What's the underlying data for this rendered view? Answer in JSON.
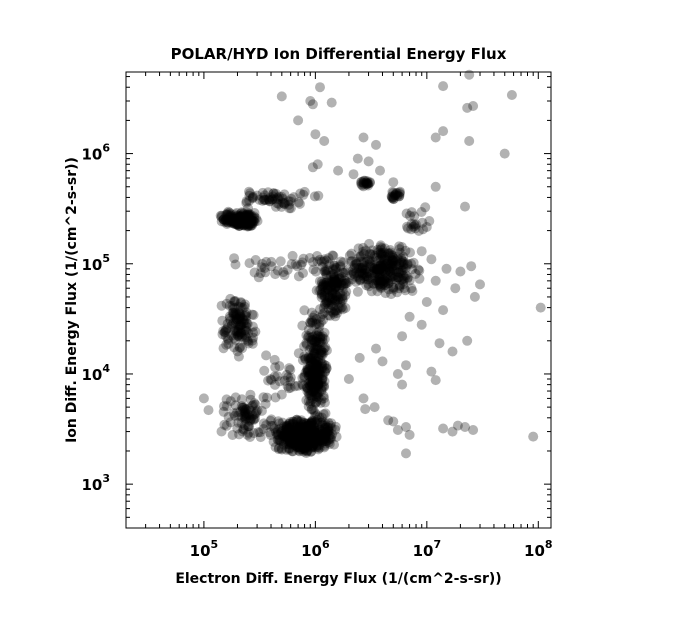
{
  "chart_data": {
    "type": "scatter",
    "title": "POLAR/HYD  Ion Differential Energy Flux",
    "xlabel": "Electron Diff. Energy Flux (1/(cm^2-s-sr))",
    "ylabel": "Ion Diff. Energy Flux (1/(cm^2-s-sr))",
    "x_scale": "log",
    "y_scale": "log",
    "xlim": [
      20000,
      130000000
    ],
    "ylim": [
      400,
      5500000
    ],
    "x_ticks": [
      {
        "base": "10",
        "exp": "5",
        "value": 100000
      },
      {
        "base": "10",
        "exp": "6",
        "value": 1000000
      },
      {
        "base": "10",
        "exp": "7",
        "value": 10000000
      },
      {
        "base": "10",
        "exp": "8",
        "value": 100000000
      }
    ],
    "y_ticks": [
      {
        "base": "10",
        "exp": "3",
        "value": 1000
      },
      {
        "base": "10",
        "exp": "4",
        "value": 10000
      },
      {
        "base": "10",
        "exp": "5",
        "value": 100000
      },
      {
        "base": "10",
        "exp": "6",
        "value": 1000000
      }
    ],
    "marker_color": "#000000",
    "marker_opacity": 0.3,
    "grid": false,
    "legend": "none",
    "clusters": [
      {
        "x_range": [
          400000,
          1600000
        ],
        "y_range": [
          1900,
          4000
        ],
        "n": 460
      },
      {
        "x_range": [
          750000,
          1300000
        ],
        "y_range": [
          3000,
          40000
        ],
        "n": 260
      },
      {
        "x_range": [
          1000000,
          2000000
        ],
        "y_range": [
          30000,
          120000
        ],
        "n": 160
      },
      {
        "x_range": [
          1800000,
          9000000
        ],
        "y_range": [
          50000,
          160000
        ],
        "n": 280
      },
      {
        "x_range": [
          140000,
          320000
        ],
        "y_range": [
          210000,
          300000
        ],
        "n": 170
      },
      {
        "x_range": [
          140000,
          300000
        ],
        "y_range": [
          14000,
          55000
        ],
        "n": 120
      },
      {
        "x_range": [
          130000,
          450000
        ],
        "y_range": [
          2500,
          7000
        ],
        "n": 90
      },
      {
        "x_range": [
          150000,
          1200000
        ],
        "y_range": [
          300000,
          500000
        ],
        "n": 60
      },
      {
        "x_range": [
          2400000,
          3200000
        ],
        "y_range": [
          500000,
          580000
        ],
        "n": 20
      },
      {
        "x_range": [
          4500000,
          6500000
        ],
        "y_range": [
          380000,
          470000
        ],
        "n": 20
      },
      {
        "x_range": [
          6000000,
          12000000
        ],
        "y_range": [
          180000,
          350000
        ],
        "n": 20
      },
      {
        "x_range": [
          150000,
          3000000
        ],
        "y_range": [
          70000,
          130000
        ],
        "n": 40
      },
      {
        "x_range": [
          300000,
          1200000
        ],
        "y_range": [
          6000,
          20000
        ],
        "n": 30
      }
    ],
    "points": [
      [
        500000,
        3300000
      ],
      [
        900000,
        3000000
      ],
      [
        950000,
        2800000
      ],
      [
        1100000,
        4000000
      ],
      [
        1400000,
        2900000
      ],
      [
        700000,
        2000000
      ],
      [
        1000000,
        1500000
      ],
      [
        1200000,
        1300000
      ],
      [
        2700000,
        1400000
      ],
      [
        3500000,
        1200000
      ],
      [
        14000000,
        4100000
      ],
      [
        24000000,
        5200000
      ],
      [
        58000000,
        3400000
      ],
      [
        23000000,
        2600000
      ],
      [
        26000000,
        2700000
      ],
      [
        12000000,
        1400000
      ],
      [
        14000000,
        1600000
      ],
      [
        24000000,
        1300000
      ],
      [
        50000000,
        1000000
      ],
      [
        2400000,
        900000
      ],
      [
        3000000,
        850000
      ],
      [
        950000,
        750000
      ],
      [
        1050000,
        800000
      ],
      [
        1600000,
        700000
      ],
      [
        2200000,
        650000
      ],
      [
        3800000,
        700000
      ],
      [
        5000000,
        550000
      ],
      [
        12000000,
        500000
      ],
      [
        22000000,
        330000
      ],
      [
        9000000,
        130000
      ],
      [
        11000000,
        110000
      ],
      [
        15000000,
        90000
      ],
      [
        20000000,
        85000
      ],
      [
        25000000,
        95000
      ],
      [
        12000000,
        70000
      ],
      [
        18000000,
        60000
      ],
      [
        30000000,
        65000
      ],
      [
        27000000,
        50000
      ],
      [
        105000000,
        40000
      ],
      [
        10000000,
        45000
      ],
      [
        7000000,
        33000
      ],
      [
        6000000,
        22000
      ],
      [
        9000000,
        28000
      ],
      [
        14000000,
        38000
      ],
      [
        13000000,
        19000
      ],
      [
        23000000,
        20000
      ],
      [
        17000000,
        16000
      ],
      [
        11000000,
        10500
      ],
      [
        12000000,
        8800
      ],
      [
        6500000,
        12000
      ],
      [
        5500000,
        10000
      ],
      [
        3500000,
        17000
      ],
      [
        4000000,
        13000
      ],
      [
        2500000,
        14000
      ],
      [
        2000000,
        9000
      ],
      [
        2700000,
        6000
      ],
      [
        3400000,
        5000
      ],
      [
        2800000,
        4800
      ],
      [
        5000000,
        3700
      ],
      [
        6500000,
        3300
      ],
      [
        5500000,
        3100
      ],
      [
        7000000,
        2800
      ],
      [
        6500000,
        1900
      ],
      [
        14000000,
        3200
      ],
      [
        19000000,
        3400
      ],
      [
        22000000,
        3300
      ],
      [
        26000000,
        3100
      ],
      [
        17000000,
        3000
      ],
      [
        90000000,
        2700
      ],
      [
        100000,
        6000
      ],
      [
        110000,
        4700
      ],
      [
        500000,
        6500
      ],
      [
        600000,
        7500
      ],
      [
        4500000,
        3800
      ],
      [
        6000000,
        8000
      ]
    ]
  }
}
